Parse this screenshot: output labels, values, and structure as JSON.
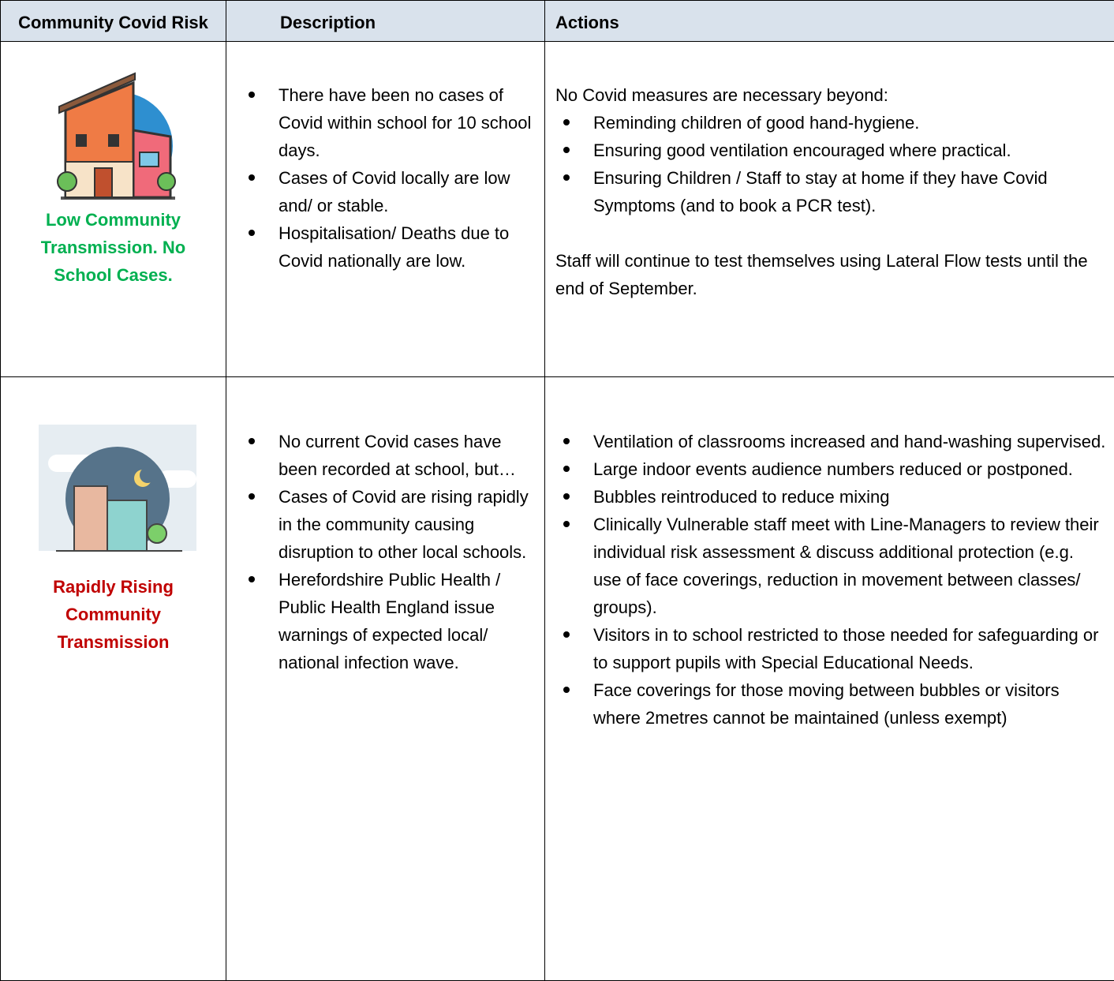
{
  "table": {
    "header": [
      "Community Covid Risk",
      "Description",
      "Actions"
    ],
    "rows": [
      {
        "risk": "Low Community Transmission. No School Cases.",
        "description": [
          "There have been no cases of Covid within school for 10 school days.",
          "Cases of Covid locally are low and/ or stable.",
          "Hospitalisation/ Deaths due to Covid nationally are low."
        ],
        "actions": {
          "intro": "No Covid measures are necessary beyond:",
          "bullets": [
            "Reminding children of good hand-hygiene.",
            "Ensuring good ventilation encouraged where practical.",
            "Ensuring Children / Staff to stay at home if they have Covid Symptoms (and to book a PCR test)."
          ],
          "note": "Staff will continue to test themselves using Lateral Flow tests until the end of September."
        }
      },
      {
        "risk": "Rapidly Rising Community Transmission",
        "description": [
          "No current Covid cases have been recorded at school, but…",
          "Cases of Covid are rising rapidly in the community causing disruption to other local schools.",
          "Herefordshire Public Health / Public Health England issue warnings of expected local/ national infection wave."
        ],
        "actions": {
          "bullets": [
            "Ventilation of classrooms increased and hand-washing supervised.",
            "Large indoor events audience numbers reduced or postponed.",
            "Bubbles reintroduced to reduce mixing",
            "Clinically Vulnerable staff meet with Line-Managers to review their individual risk assessment & discuss additional protection (e.g. use of face coverings, reduction in movement between classes/ groups).",
            "Visitors in to school restricted to those needed for safeguarding or to support pupils with Special Educational Needs.",
            "Face coverings for those moving between bubbles or visitors where 2metres cannot be maintained (unless exempt)"
          ]
        }
      }
    ]
  }
}
